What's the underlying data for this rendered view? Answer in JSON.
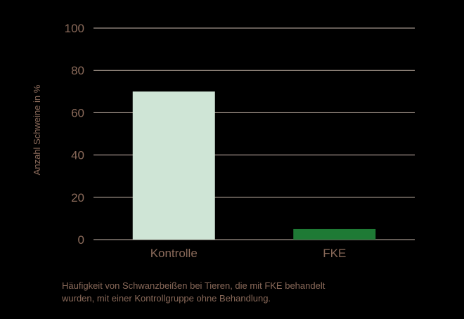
{
  "chart_data": {
    "type": "bar",
    "categories": [
      "Kontrolle",
      "FKE"
    ],
    "values": [
      70,
      5
    ],
    "colors": [
      "#cfe5d6",
      "#1e7a35"
    ],
    "ylabel": "Anzahl Schweine in %",
    "xlabel": "",
    "ylim": [
      0,
      100
    ],
    "yticks": [
      "0",
      "20",
      "40",
      "60",
      "80",
      "100"
    ],
    "grid": true
  },
  "caption": {
    "line1": "Häufigkeit von Schwanzbeißen bei Tieren, die mit FKE behandelt",
    "line2": "wurden, mit einer Kontrollgruppe ohne Behandlung."
  }
}
